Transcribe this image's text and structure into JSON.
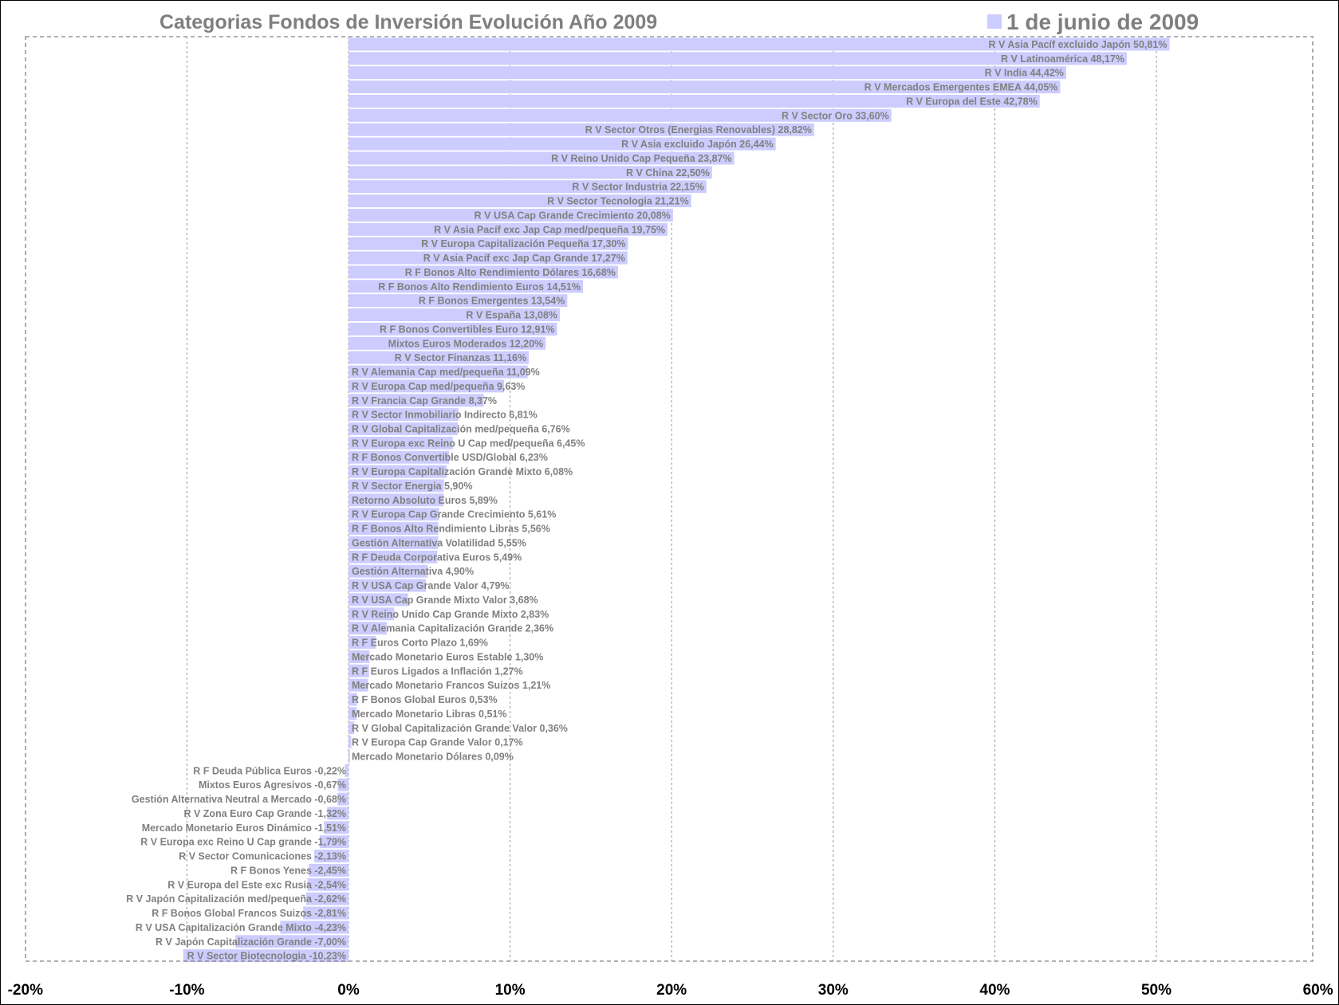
{
  "chart_data": {
    "type": "bar",
    "orientation": "horizontal",
    "title": "Categorias Fondos de Inversión Evolución Año 2009",
    "legend": {
      "position": "top-right",
      "entries": [
        "1 de junio de 2009"
      ]
    },
    "bar_color": "#ccccff",
    "xlim": [
      -20,
      60
    ],
    "x_ticks": [
      -20,
      -10,
      0,
      10,
      20,
      30,
      40,
      50,
      60
    ],
    "x_tick_labels": [
      "-20%",
      "-10%",
      "0%",
      "10%",
      "20%",
      "30%",
      "40%",
      "50%",
      "60%"
    ],
    "grid": "vertical dashed",
    "series": [
      {
        "name": "1 de junio de 2009",
        "points": [
          {
            "category": "R V Asia Pacíf excluido Japón",
            "value": 50.81,
            "label": "R V Asia Pacíf excluido Japón 50,81%"
          },
          {
            "category": "R V Latinoamérica",
            "value": 48.17,
            "label": "R V Latinoamérica 48,17%"
          },
          {
            "category": "R V India",
            "value": 44.42,
            "label": "R V India 44,42%"
          },
          {
            "category": "R V Mercados Emergentes EMEA",
            "value": 44.05,
            "label": "R V Mercados Emergentes EMEA 44,05%"
          },
          {
            "category": "R V Europa del Este",
            "value": 42.78,
            "label": "R V Europa del Este 42,78%"
          },
          {
            "category": "R V Sector Oro",
            "value": 33.6,
            "label": "R V Sector Oro 33,60%"
          },
          {
            "category": "R V Sector Otros (Energias Renovables)",
            "value": 28.82,
            "label": "R V Sector Otros (Energias Renovables) 28,82%"
          },
          {
            "category": "R V Asia excluido Japón",
            "value": 26.44,
            "label": "R V Asia excluido Japón 26,44%"
          },
          {
            "category": "R V Reino Unido Cap Pequeña",
            "value": 23.87,
            "label": "R V Reino Unido Cap Pequeña 23,87%"
          },
          {
            "category": "R V China",
            "value": 22.5,
            "label": "R V China 22,50%"
          },
          {
            "category": "R V Sector Industria",
            "value": 22.15,
            "label": "R V Sector Industria 22,15%"
          },
          {
            "category": "R V Sector Tecnologia",
            "value": 21.21,
            "label": "R V Sector Tecnologia 21,21%"
          },
          {
            "category": "R V USA Cap Grande Crecimiento",
            "value": 20.08,
            "label": "R V USA Cap Grande Crecimiento 20,08%"
          },
          {
            "category": "R V Asia Pacíf exc Jap Cap med/pequeña",
            "value": 19.75,
            "label": "R V Asia Pacíf exc Jap Cap med/pequeña 19,75%"
          },
          {
            "category": "R V Europa Capitalización Pequeña",
            "value": 17.3,
            "label": "R V Europa Capitalización Pequeña 17,30%"
          },
          {
            "category": "R V Asia Pacíf exc Jap Cap Grande",
            "value": 17.27,
            "label": "R V Asia Pacíf exc Jap Cap Grande 17,27%"
          },
          {
            "category": "R F Bonos Alto Rendimiento Dólares",
            "value": 16.68,
            "label": "R F Bonos Alto Rendimiento Dólares 16,68%"
          },
          {
            "category": "R F Bonos Alto Rendimiento Euros",
            "value": 14.51,
            "label": "R F Bonos Alto Rendimiento Euros 14,51%"
          },
          {
            "category": "R F Bonos Emergentes",
            "value": 13.54,
            "label": "R F Bonos Emergentes 13,54%"
          },
          {
            "category": "R V España",
            "value": 13.08,
            "label": "R V España 13,08%"
          },
          {
            "category": "R F Bonos Convertibles Euro",
            "value": 12.91,
            "label": "R F Bonos Convertibles Euro 12,91%"
          },
          {
            "category": "Mixtos Euros Moderados",
            "value": 12.2,
            "label": "Mixtos Euros Moderados 12,20%"
          },
          {
            "category": "R V Sector Finanzas",
            "value": 11.16,
            "label": "R V Sector Finanzas 11,16%"
          },
          {
            "category": "R V Alemania Cap med/pequeña",
            "value": 11.09,
            "label": "R V Alemania Cap med/pequeña 11,09%"
          },
          {
            "category": "R V Europa Cap med/pequeña",
            "value": 9.63,
            "label": "R V Europa Cap med/pequeña 9,63%"
          },
          {
            "category": "R V Francia Cap Grande",
            "value": 8.37,
            "label": "R V Francia Cap Grande 8,37%"
          },
          {
            "category": "R V Sector Inmobiliario Indirecto",
            "value": 6.81,
            "label": "R V Sector Inmobiliario Indirecto 6,81%"
          },
          {
            "category": "R V Global Capitalización med/pequeña",
            "value": 6.76,
            "label": "R V Global Capitalización med/pequeña 6,76%"
          },
          {
            "category": "R V Europa exc Reino U Cap med/pequeña",
            "value": 6.45,
            "label": "R V Europa exc Reino U Cap med/pequeña 6,45%"
          },
          {
            "category": "R F Bonos Convertible USD/Global",
            "value": 6.23,
            "label": "R F Bonos Convertible USD/Global 6,23%"
          },
          {
            "category": "R V Europa Capitalización Grande Mixto",
            "value": 6.08,
            "label": "R V Europa Capitalización Grande Mixto 6,08%"
          },
          {
            "category": "R V Sector Energia",
            "value": 5.9,
            "label": "R V Sector Energia 5,90%"
          },
          {
            "category": "Retorno Absoluto Euros",
            "value": 5.89,
            "label": "Retorno Absoluto Euros 5,89%"
          },
          {
            "category": "R V Europa Cap Grande Crecimiento",
            "value": 5.61,
            "label": "R V Europa Cap Grande Crecimiento 5,61%"
          },
          {
            "category": "R F Bonos Alto Rendimiento Libras",
            "value": 5.56,
            "label": "R F Bonos Alto Rendimiento Libras 5,56%"
          },
          {
            "category": "Gestión Alternativa Volatilidad",
            "value": 5.55,
            "label": "Gestión Alternativa Volatilidad 5,55%"
          },
          {
            "category": "R F Deuda Corporativa Euros",
            "value": 5.49,
            "label": "R F Deuda Corporativa Euros 5,49%"
          },
          {
            "category": "Gestión Alternativa",
            "value": 4.9,
            "label": "Gestión Alternativa 4,90%"
          },
          {
            "category": "R V USA Cap Grande Valor",
            "value": 4.79,
            "label": "R V USA Cap Grande Valor 4,79%"
          },
          {
            "category": "R V USA Cap Grande Mixto Valor",
            "value": 3.68,
            "label": "R V USA Cap Grande Mixto Valor 3,68%"
          },
          {
            "category": "R V Reino Unido Cap Grande Mixto",
            "value": 2.83,
            "label": "R V Reino Unido Cap Grande Mixto 2,83%"
          },
          {
            "category": "R V Alemania Capitalización Grande",
            "value": 2.36,
            "label": "R V Alemania Capitalización Grande 2,36%"
          },
          {
            "category": "R F Euros Corto Plazo",
            "value": 1.69,
            "label": "R F Euros Corto Plazo 1,69%"
          },
          {
            "category": "Mercado Monetario Euros Estable",
            "value": 1.3,
            "label": "Mercado Monetario Euros Estable 1,30%"
          },
          {
            "category": "R F Euros Ligados a Inflación",
            "value": 1.27,
            "label": "R F Euros Ligados a Inflación 1,27%"
          },
          {
            "category": "Mercado Monetario Francos Suizos",
            "value": 1.21,
            "label": "Mercado Monetario Francos Suizos 1,21%"
          },
          {
            "category": "R F Bonos Global Euros",
            "value": 0.53,
            "label": "R F Bonos Global Euros 0,53%"
          },
          {
            "category": "Mercado Monetario Libras",
            "value": 0.51,
            "label": "Mercado Monetario Libras 0,51%"
          },
          {
            "category": "R V Global Capitalización Grande Valor",
            "value": 0.36,
            "label": "R V Global Capitalización Grande Valor 0,36%"
          },
          {
            "category": "R V Europa Cap Grande Valor",
            "value": 0.17,
            "label": "R V Europa Cap Grande Valor 0,17%"
          },
          {
            "category": "Mercado Monetario Dólares",
            "value": 0.09,
            "label": "Mercado Monetario Dólares 0,09%"
          },
          {
            "category": "R F Deuda Pública Euros",
            "value": -0.22,
            "label": "R F Deuda Pública Euros -0,22%"
          },
          {
            "category": "Mixtos Euros Agresivos",
            "value": -0.67,
            "label": "Mixtos Euros Agresivos -0,67%"
          },
          {
            "category": "Gestión Alternativa Neutral a Mercado",
            "value": -0.68,
            "label": "Gestión Alternativa Neutral a Mercado -0,68%"
          },
          {
            "category": "R V Zona Euro Cap Grande",
            "value": -1.32,
            "label": "R V Zona Euro Cap Grande -1,32%"
          },
          {
            "category": "Mercado Monetario Euros Dinámico",
            "value": -1.51,
            "label": "Mercado Monetario Euros Dinámico -1,51%"
          },
          {
            "category": "R V Europa exc Reino U Cap grande",
            "value": -1.79,
            "label": "R V Europa exc Reino U Cap grande -1,79%"
          },
          {
            "category": "R V Sector Comunicaciones",
            "value": -2.13,
            "label": "R V Sector Comunicaciones -2,13%"
          },
          {
            "category": "R F Bonos Yenes",
            "value": -2.45,
            "label": "R F Bonos Yenes -2,45%"
          },
          {
            "category": "R V Europa del Este exc Rusia",
            "value": -2.54,
            "label": "R V Europa del Este exc Rusia -2,54%"
          },
          {
            "category": "R V Japón Capitalización med/pequeña",
            "value": -2.62,
            "label": "R V Japón Capitalización med/pequeña -2,62%"
          },
          {
            "category": "R F Bonos Global Francos Suizos",
            "value": -2.81,
            "label": "R F Bonos Global Francos Suizos -2,81%"
          },
          {
            "category": "R V USA Capitalización Grande Mixto",
            "value": -4.23,
            "label": "R V USA Capitalización Grande Mixto -4,23%"
          },
          {
            "category": "R V Japón Capitalización Grande",
            "value": -7.0,
            "label": "R V Japón Capitalización Grande -7,00%"
          },
          {
            "category": "R V Sector Biotecnologia",
            "value": -10.23,
            "label": "R V Sector Biotecnologia -10,23%"
          }
        ]
      }
    ]
  }
}
